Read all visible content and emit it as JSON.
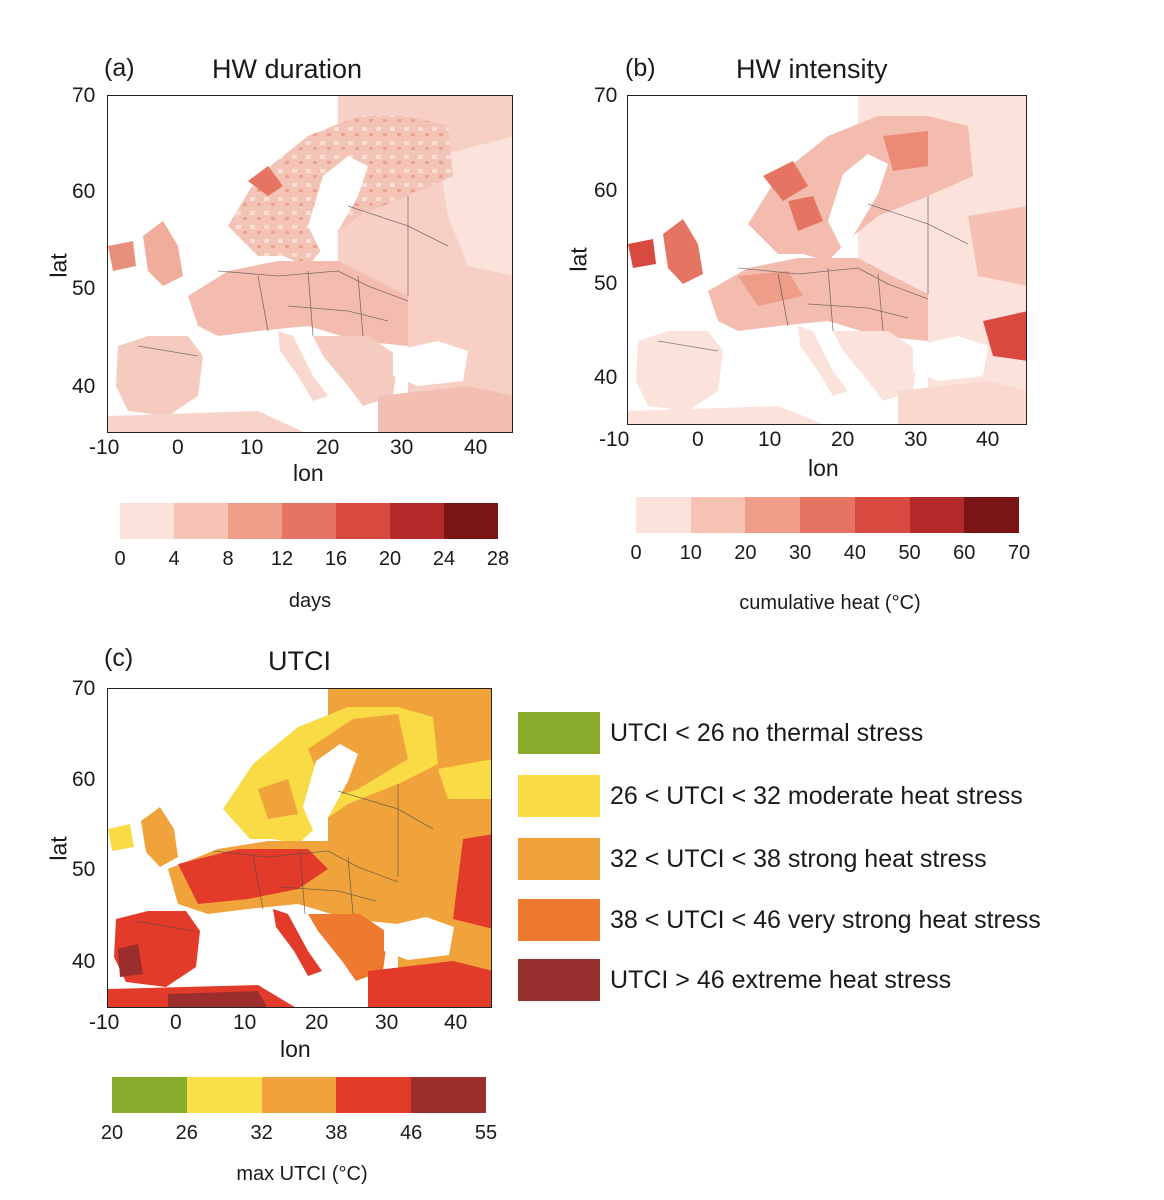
{
  "panels": {
    "a": {
      "letter": "(a)",
      "title": "HW duration",
      "ylabel": "lat",
      "xlabel": "lon",
      "yticks": [
        "70",
        "60",
        "50",
        "40"
      ],
      "xticks": [
        "-10",
        "0",
        "10",
        "20",
        "30",
        "40"
      ],
      "colorbar": {
        "colors": [
          "#fbe3dc",
          "#f5c2b4",
          "#ee9d88",
          "#e67462",
          "#d84a3f",
          "#b42929",
          "#7b1414"
        ],
        "ticks": [
          "0",
          "4",
          "8",
          "12",
          "16",
          "20",
          "24",
          "28"
        ],
        "label": "days"
      }
    },
    "b": {
      "letter": "(b)",
      "title": "HW intensity",
      "ylabel": "lat",
      "xlabel": "lon",
      "yticks": [
        "70",
        "60",
        "50",
        "40"
      ],
      "xticks": [
        "-10",
        "0",
        "10",
        "20",
        "30",
        "40"
      ],
      "colorbar": {
        "colors": [
          "#fbe3dc",
          "#f5c2b4",
          "#ee9d88",
          "#e67462",
          "#d84a3f",
          "#b42929",
          "#7b1414"
        ],
        "ticks": [
          "0",
          "10",
          "20",
          "30",
          "40",
          "50",
          "60",
          "70"
        ],
        "label": "cumulative heat (°C)"
      }
    },
    "c": {
      "letter": "(c)",
      "title": "UTCI",
      "ylabel": "lat",
      "xlabel": "lon",
      "yticks": [
        "70",
        "60",
        "50",
        "40"
      ],
      "xticks": [
        "-10",
        "0",
        "10",
        "20",
        "30",
        "40"
      ],
      "colorbar": {
        "colors": [
          "#8aac2c",
          "#f9e04a",
          "#f0a33a",
          "#e23b2a",
          "#9b2d2d"
        ],
        "ticks": [
          "20",
          "26",
          "32",
          "38",
          "46",
          "55"
        ],
        "label": "max UTCI (°C)"
      }
    }
  },
  "legend": [
    {
      "color": "#8aac2c",
      "text": "UTCI < 26 no thermal stress"
    },
    {
      "color": "#f9db45",
      "text": "26 < UTCI < 32 moderate heat stress"
    },
    {
      "color": "#f0a33a",
      "text": "32 < UTCI < 38 strong heat stress"
    },
    {
      "color": "#ee7a2f",
      "text": "38 < UTCI < 46 very strong heat stress"
    },
    {
      "color": "#983030",
      "text": "UTCI > 46 extreme heat stress"
    }
  ]
}
